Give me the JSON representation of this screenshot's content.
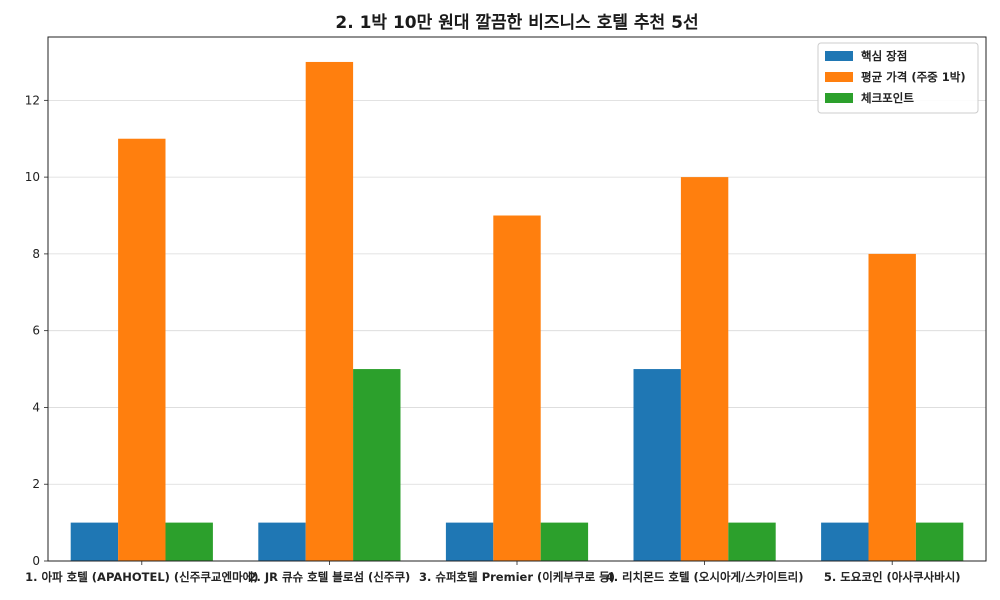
{
  "chart_data": {
    "type": "bar",
    "title": "2. 1박 10만 원대 깔끔한 비즈니스 호텔 추천 5선",
    "xlabel": "",
    "ylabel": "",
    "categories": [
      "1. 아파 호텔 (APAHOTEL) (신주쿠교엔마에)",
      "2. JR 큐슈 호텔 블로섬 (신주쿠)",
      "3. 슈퍼호텔 Premier (이케부쿠로 등)",
      "4. 리치몬드 호텔 (오시아게/스카이트리)",
      "5. 도요코인 (아사쿠사바시)"
    ],
    "series": [
      {
        "name": "핵심 장점",
        "color": "#1f77b4",
        "values": [
          1,
          1,
          1,
          5,
          1
        ]
      },
      {
        "name": "평균 가격 (주중 1박)",
        "color": "#ff7f0e",
        "values": [
          11,
          13,
          9,
          10,
          8
        ]
      },
      {
        "name": "체크포인트",
        "color": "#2ca02c",
        "values": [
          1,
          5,
          1,
          1,
          1
        ]
      }
    ],
    "ylim": [
      0,
      13.65
    ],
    "yticks": [
      0,
      2,
      4,
      6,
      8,
      10,
      12
    ],
    "grid": "y",
    "legend_position": "top-right"
  }
}
